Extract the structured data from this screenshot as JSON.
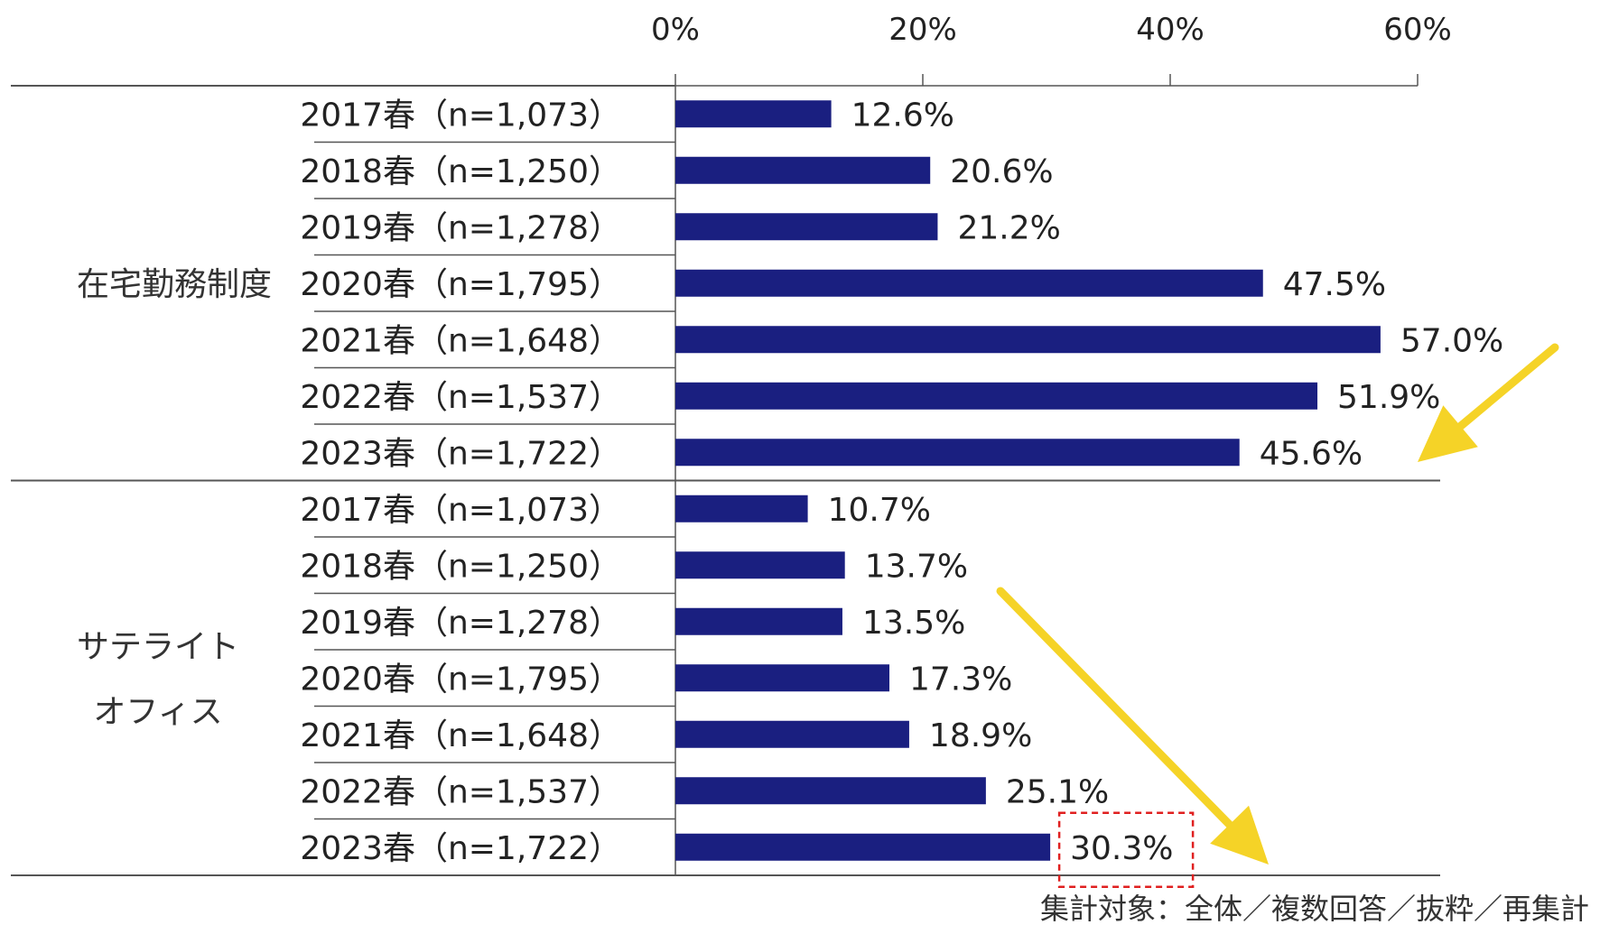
{
  "chart_data": {
    "type": "bar",
    "orientation": "horizontal",
    "xlim": [
      0,
      60
    ],
    "xticks": [
      "0%",
      "20%",
      "40%",
      "60%"
    ],
    "groups": [
      {
        "name": "在宅勤務制度",
        "rows": [
          {
            "label": "2017春（n=1,073）",
            "value": 12.6,
            "value_label": "12.6%"
          },
          {
            "label": "2018春（n=1,250）",
            "value": 20.6,
            "value_label": "20.6%"
          },
          {
            "label": "2019春（n=1,278）",
            "value": 21.2,
            "value_label": "21.2%"
          },
          {
            "label": "2020春（n=1,795）",
            "value": 47.5,
            "value_label": "47.5%"
          },
          {
            "label": "2021春（n=1,648）",
            "value": 57.0,
            "value_label": "57.0%"
          },
          {
            "label": "2022春（n=1,537）",
            "value": 51.9,
            "value_label": "51.9%"
          },
          {
            "label": "2023春（n=1,722）",
            "value": 45.6,
            "value_label": "45.6%"
          }
        ]
      },
      {
        "name_lines": [
          "サテライト",
          "オフィス"
        ],
        "rows": [
          {
            "label": "2017春（n=1,073）",
            "value": 10.7,
            "value_label": "10.7%"
          },
          {
            "label": "2018春（n=1,250）",
            "value": 13.7,
            "value_label": "13.7%"
          },
          {
            "label": "2019春（n=1,278）",
            "value": 13.5,
            "value_label": "13.5%"
          },
          {
            "label": "2020春（n=1,795）",
            "value": 17.3,
            "value_label": "17.3%"
          },
          {
            "label": "2021春（n=1,648）",
            "value": 18.9,
            "value_label": "18.9%"
          },
          {
            "label": "2022春（n=1,537）",
            "value": 25.1,
            "value_label": "25.1%"
          },
          {
            "label": "2023春（n=1,722）",
            "value": 30.3,
            "value_label": "30.3%",
            "highlighted": true
          }
        ]
      }
    ],
    "footnote": "集計対象：全体／複数回答／抜粋／再集計",
    "colors": {
      "bar": "#1a1f80",
      "arrow": "#f5d327",
      "highlight_box": "#e02020",
      "line": "#555555"
    }
  }
}
